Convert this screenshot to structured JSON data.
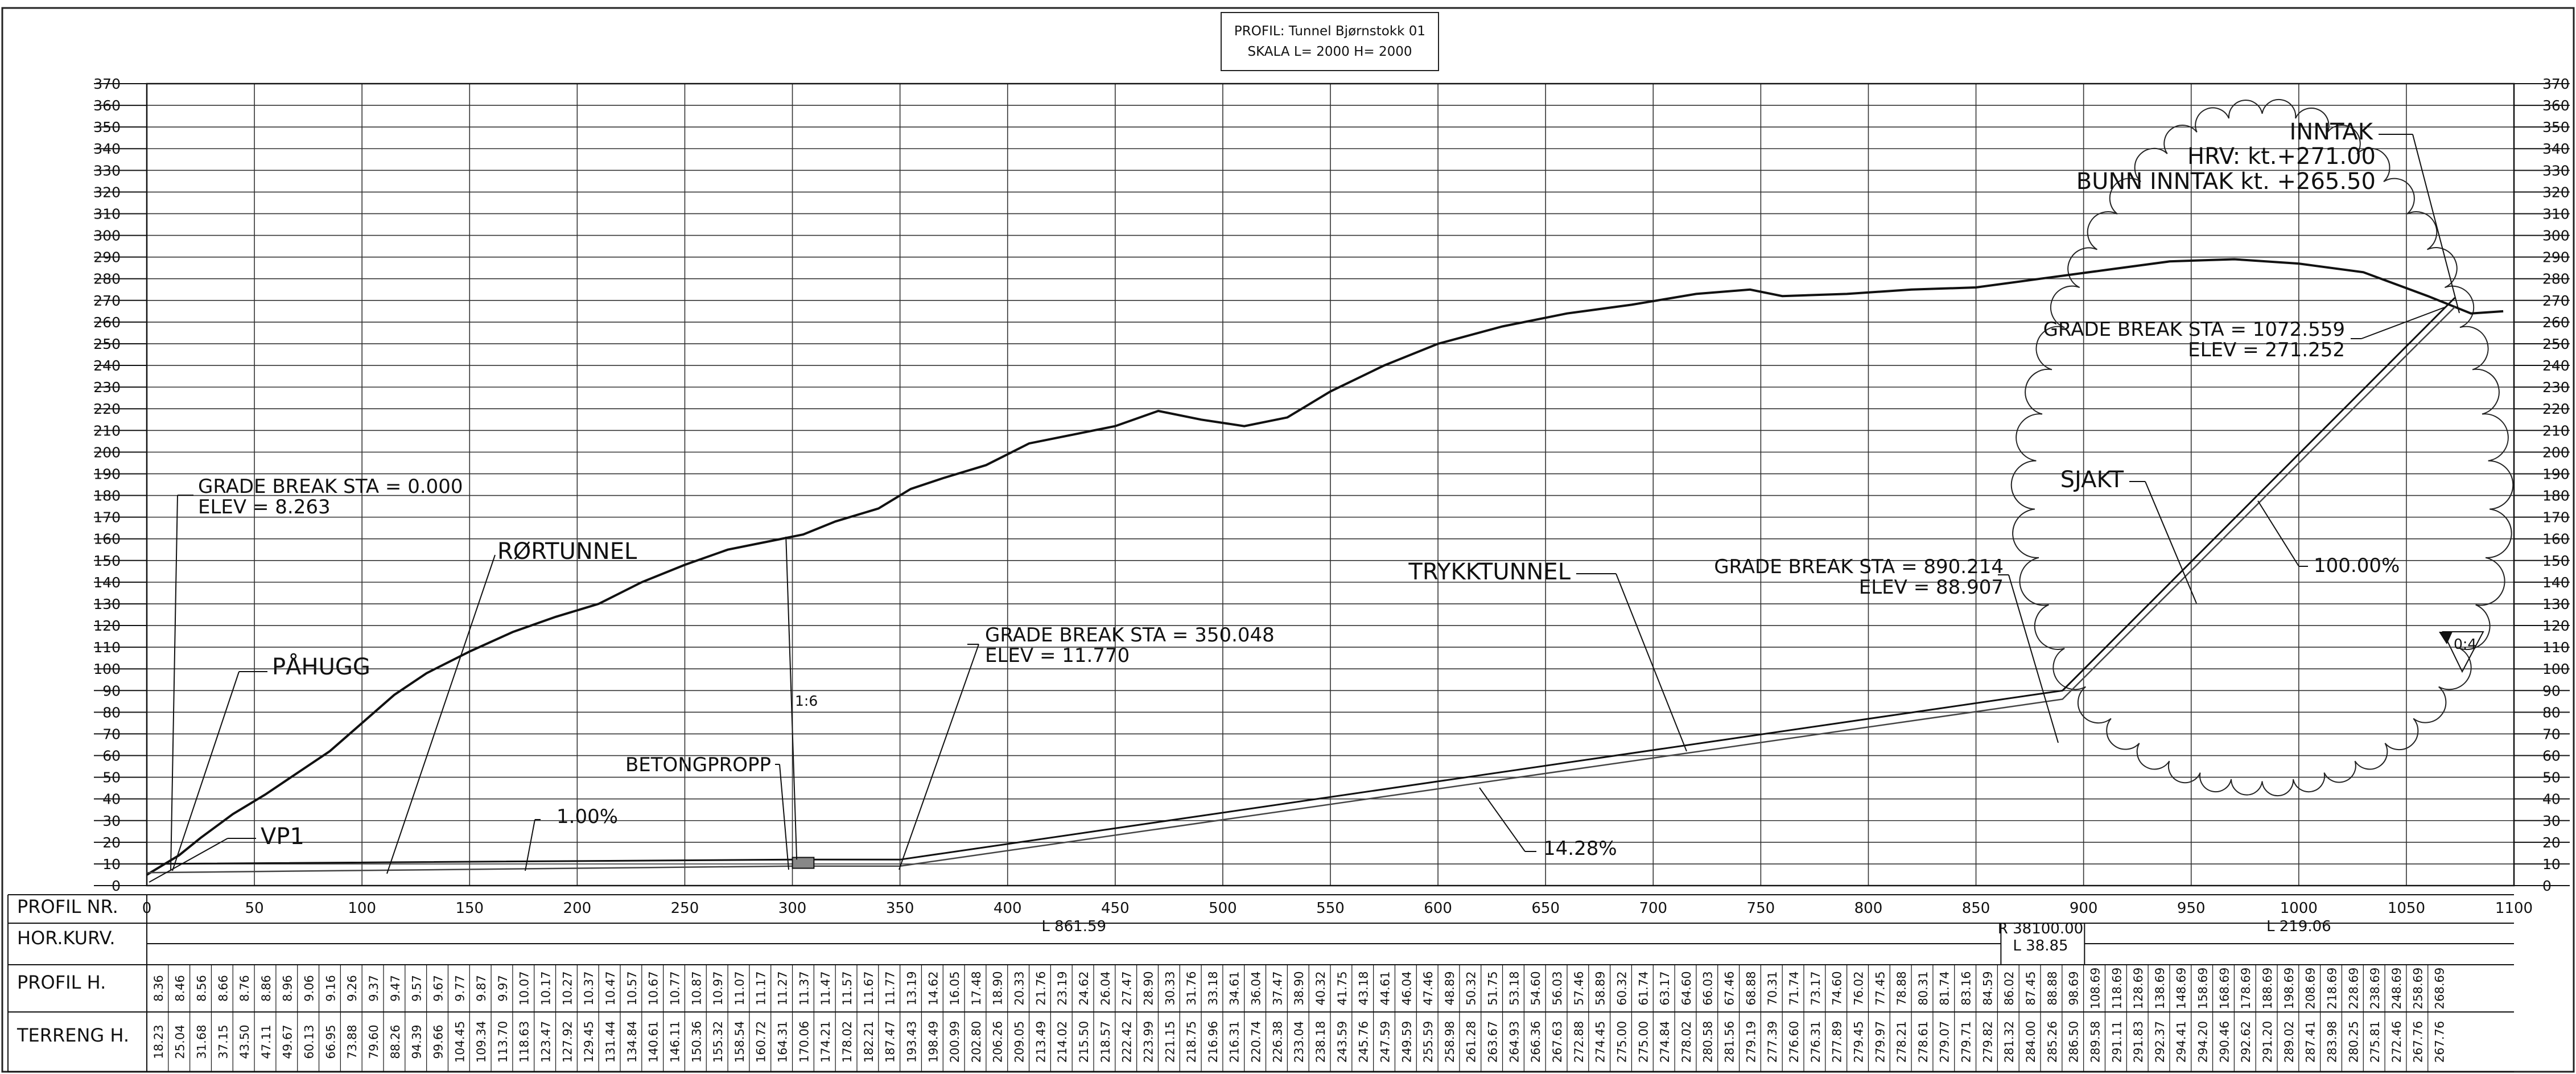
{
  "title_block": {
    "line1": "PROFIL: Tunnel Bjørnstokk 01",
    "line2": "SKALA L= 2000 H= 2000"
  },
  "chart_data": {
    "type": "line",
    "xlim": [
      0,
      1100
    ],
    "ylim": [
      0,
      370
    ],
    "x_ticks": [
      "0",
      "50",
      "100",
      "150",
      "200",
      "250",
      "300",
      "350",
      "400",
      "450",
      "500",
      "550",
      "600",
      "650",
      "700",
      "750",
      "800",
      "850",
      "900",
      "950",
      "1000",
      "1050",
      "1100"
    ],
    "y_ticks": [
      "0",
      "10",
      "20",
      "30",
      "40",
      "50",
      "60",
      "70",
      "80",
      "90",
      "100",
      "110",
      "120",
      "130",
      "140",
      "150",
      "160",
      "170",
      "180",
      "190",
      "200",
      "210",
      "220",
      "230",
      "240",
      "250",
      "260",
      "270",
      "280",
      "290",
      "300",
      "310",
      "320",
      "330",
      "340",
      "350",
      "360",
      "370"
    ],
    "grid": true,
    "terrain": [
      [
        0,
        5
      ],
      [
        15,
        14
      ],
      [
        25,
        22
      ],
      [
        40,
        33
      ],
      [
        55,
        42
      ],
      [
        70,
        52
      ],
      [
        85,
        62
      ],
      [
        100,
        75
      ],
      [
        115,
        88
      ],
      [
        130,
        98
      ],
      [
        150,
        108
      ],
      [
        170,
        117
      ],
      [
        190,
        124
      ],
      [
        210,
        130
      ],
      [
        230,
        140
      ],
      [
        250,
        148
      ],
      [
        270,
        155
      ],
      [
        290,
        159
      ],
      [
        305,
        162
      ],
      [
        320,
        168
      ],
      [
        340,
        174
      ],
      [
        355,
        183
      ],
      [
        370,
        188
      ],
      [
        390,
        194
      ],
      [
        410,
        204
      ],
      [
        430,
        208
      ],
      [
        450,
        212
      ],
      [
        470,
        219
      ],
      [
        490,
        215
      ],
      [
        510,
        212
      ],
      [
        530,
        216
      ],
      [
        550,
        228
      ],
      [
        575,
        240
      ],
      [
        600,
        250
      ],
      [
        630,
        258
      ],
      [
        660,
        264
      ],
      [
        690,
        268
      ],
      [
        720,
        273
      ],
      [
        745,
        275
      ],
      [
        760,
        272
      ],
      [
        790,
        273
      ],
      [
        820,
        275
      ],
      [
        850,
        276
      ],
      [
        880,
        280
      ],
      [
        910,
        284
      ],
      [
        940,
        288
      ],
      [
        970,
        289
      ],
      [
        1000,
        287
      ],
      [
        1030,
        283
      ],
      [
        1060,
        272
      ],
      [
        1080,
        264
      ],
      [
        1095,
        265
      ]
    ],
    "tunnel_upper": [
      [
        0,
        10
      ],
      [
        300,
        12
      ],
      [
        350,
        12
      ],
      [
        890.214,
        90
      ],
      [
        1072.559,
        271.252
      ]
    ],
    "tunnel_lower": [
      [
        0,
        6
      ],
      [
        300,
        9
      ],
      [
        350,
        9
      ],
      [
        890.214,
        86
      ],
      [
        1072.559,
        267
      ]
    ],
    "labels": {
      "grade_break_1_sta": "GRADE BREAK STA = 0.000",
      "grade_break_1_elev": "ELEV =  8.263",
      "grade_break_2_sta": "GRADE BREAK STA = 350.048",
      "grade_break_2_elev": "ELEV =  11.770",
      "grade_break_3_sta": "GRADE BREAK STA = 890.214",
      "grade_break_3_elev": "ELEV =  88.907",
      "grade_break_4_sta": "GRADE BREAK STA = 1072.559",
      "grade_break_4_elev": "ELEV =  271.252",
      "rortunnel": "RØRTUNNEL",
      "pahugg": "PÅHUGG",
      "vp1": "VP1",
      "betongpropp": "BETONGPROPP",
      "trykktunnel": "TRYKKTUNNEL",
      "sjakt": "SJAKT",
      "inntak": "INNTAK",
      "hrv": "HRV: kt.+271.00",
      "bunn_inntak": "BUNN INNTAK kt. +265.50",
      "slope_1": "1.00%",
      "slope_2": "14.28%",
      "slope_3": "100.00%",
      "marker_16": "1:6",
      "marker_04": "0:4"
    }
  },
  "table": {
    "rows": [
      "PROFIL NR.",
      "HOR.KURV.",
      "PROFIL H.",
      "TERRENG H."
    ],
    "hor_kurv": {
      "seg1": "L  861.59",
      "seg2_r": "R  38100.00",
      "seg2_l": "L  38.85",
      "seg3": "L  219.06"
    },
    "profil_h": [
      "8.36",
      "8.46",
      "8.56",
      "8.66",
      "8.76",
      "8.86",
      "8.96",
      "9.06",
      "9.16",
      "9.26",
      "9.37",
      "9.47",
      "9.57",
      "9.67",
      "9.77",
      "9.87",
      "9.97",
      "10.07",
      "10.17",
      "10.27",
      "10.37",
      "10.47",
      "10.57",
      "10.67",
      "10.77",
      "10.87",
      "10.97",
      "11.07",
      "11.17",
      "11.27",
      "11.37",
      "11.47",
      "11.57",
      "11.67",
      "11.77",
      "13.19",
      "14.62",
      "16.05",
      "17.48",
      "18.90",
      "20.33",
      "21.76",
      "23.19",
      "24.62",
      "26.04",
      "27.47",
      "28.90",
      "30.33",
      "31.76",
      "33.18",
      "34.61",
      "36.04",
      "37.47",
      "38.90",
      "40.32",
      "41.75",
      "43.18",
      "44.61",
      "46.04",
      "47.46",
      "48.89",
      "50.32",
      "51.75",
      "53.18",
      "54.60",
      "56.03",
      "57.46",
      "58.89",
      "60.32",
      "61.74",
      "63.17",
      "64.60",
      "66.03",
      "67.46",
      "68.88",
      "70.31",
      "71.74",
      "73.17",
      "74.60",
      "76.02",
      "77.45",
      "78.88",
      "80.31",
      "81.74",
      "83.16",
      "84.59",
      "86.02",
      "87.45",
      "88.88",
      "98.69",
      "108.69",
      "118.69",
      "128.69",
      "138.69",
      "148.69",
      "158.69",
      "168.69",
      "178.69",
      "188.69",
      "198.69",
      "208.69",
      "218.69",
      "228.69",
      "238.69",
      "248.69",
      "258.69",
      "268.69"
    ],
    "terreng_h": [
      "18.23",
      "25.04",
      "31.68",
      "37.15",
      "43.50",
      "47.11",
      "49.67",
      "60.13",
      "66.95",
      "73.88",
      "79.60",
      "88.26",
      "94.39",
      "99.66",
      "104.45",
      "109.34",
      "113.70",
      "118.63",
      "123.47",
      "127.92",
      "129.45",
      "131.44",
      "134.84",
      "140.61",
      "146.11",
      "150.36",
      "155.32",
      "158.54",
      "160.72",
      "164.31",
      "170.06",
      "174.21",
      "178.02",
      "182.21",
      "187.47",
      "193.43",
      "198.49",
      "200.99",
      "202.80",
      "206.26",
      "209.05",
      "213.49",
      "214.02",
      "215.50",
      "218.57",
      "222.42",
      "223.99",
      "221.15",
      "218.75",
      "216.96",
      "216.31",
      "220.74",
      "226.38",
      "233.04",
      "238.18",
      "243.59",
      "245.76",
      "247.59",
      "249.59",
      "255.59",
      "258.98",
      "261.28",
      "263.67",
      "264.93",
      "266.36",
      "267.63",
      "272.88",
      "274.45",
      "275.00",
      "275.00",
      "274.84",
      "278.02",
      "280.58",
      "281.56",
      "279.19",
      "277.39",
      "276.60",
      "276.31",
      "277.89",
      "279.45",
      "279.97",
      "278.21",
      "278.61",
      "279.07",
      "279.71",
      "279.82",
      "281.32",
      "284.00",
      "285.26",
      "286.50",
      "289.58",
      "291.11",
      "291.83",
      "292.37",
      "294.41",
      "294.20",
      "290.46",
      "292.62",
      "291.20",
      "289.02",
      "287.41",
      "283.98",
      "280.25",
      "275.81",
      "272.46",
      "267.76",
      "267.76"
    ]
  }
}
